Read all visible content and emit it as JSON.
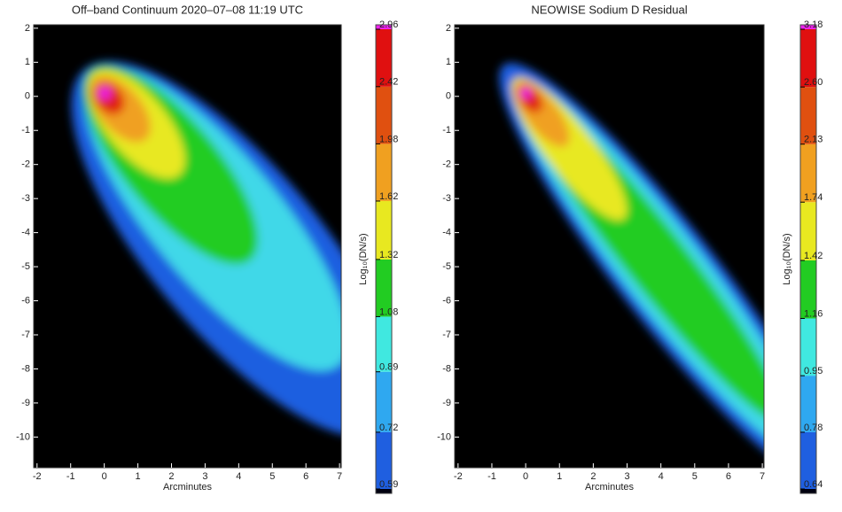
{
  "chart_data": [
    {
      "type": "heatmap",
      "title": "Off–band Continuum 2020–07–08 11:19 UTC",
      "xlabel": "Arcminutes",
      "xlim": [
        -2.1,
        7.05
      ],
      "ylim": [
        -10.9,
        2.1
      ],
      "xticks": [
        -2,
        -1,
        0,
        1,
        2,
        3,
        4,
        5,
        6,
        7
      ],
      "yticks": [
        2,
        1,
        0,
        -1,
        -2,
        -3,
        -4,
        -5,
        -6,
        -7,
        -8,
        -9,
        -10
      ],
      "colorbar_label": "Log₁₀(DN/s)",
      "colorbar_ticks": [
        0.59,
        0.72,
        0.89,
        1.08,
        1.32,
        1.62,
        1.98,
        2.42,
        2.96
      ],
      "colorbar_colors": [
        "#1f5fe0",
        "#2fa8f0",
        "#40e8e0",
        "#22cc22",
        "#e8e820",
        "#f0a020",
        "#e05010",
        "#e01010"
      ],
      "colorbar_top_color": "#ee22ee"
    },
    {
      "type": "heatmap",
      "title": "NEOWISE Sodium D Residual",
      "xlabel": "Arcminutes",
      "xlim": [
        -2.1,
        7.05
      ],
      "ylim": [
        -10.9,
        2.1
      ],
      "xticks": [
        -2,
        -1,
        0,
        1,
        2,
        3,
        4,
        5,
        6,
        7
      ],
      "yticks": [
        2,
        1,
        0,
        -1,
        -2,
        -3,
        -4,
        -5,
        -6,
        -7,
        -8,
        -9,
        -10
      ],
      "colorbar_label": "Log₁₀(DN/s)",
      "colorbar_ticks": [
        0.64,
        0.78,
        0.95,
        1.16,
        1.42,
        1.74,
        2.13,
        {
          "value": 2.6,
          "label": "2.60"
        },
        3.18
      ],
      "colorbar_colors": [
        "#1f5fe0",
        "#2fa8f0",
        "#40e8e0",
        "#22cc22",
        "#e8e820",
        "#f0a020",
        "#e05010",
        "#e01010"
      ],
      "colorbar_top_color": "#ee22ee"
    }
  ]
}
